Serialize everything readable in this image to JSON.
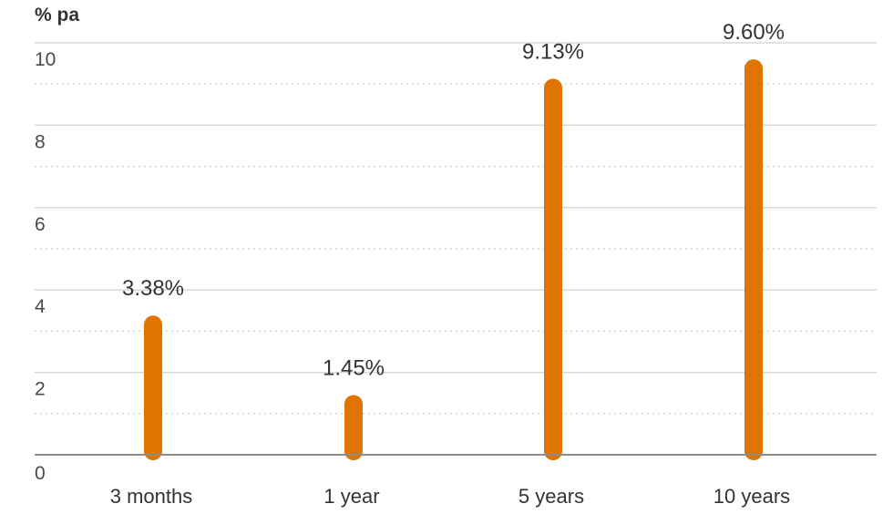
{
  "chart_data": {
    "type": "bar",
    "ylabel": "% pa",
    "categories": [
      "3 months",
      "1 year",
      "5 years",
      "10 years"
    ],
    "values": [
      3.38,
      1.45,
      9.13,
      9.6
    ],
    "data_labels": [
      "3.38%",
      "1.45%",
      "9.13%",
      "9.60%"
    ],
    "yticks": [
      0,
      2,
      4,
      6,
      8,
      10
    ],
    "ytick_labels": [
      "0",
      "2",
      "4",
      "6",
      "8",
      "10"
    ],
    "ylim": [
      0,
      10
    ],
    "grid": true,
    "colors": {
      "bar": "#e07400",
      "grid_major": "#d9d9d9",
      "grid_minor": "#cccccc",
      "baseline": "#8c8c8c"
    }
  }
}
